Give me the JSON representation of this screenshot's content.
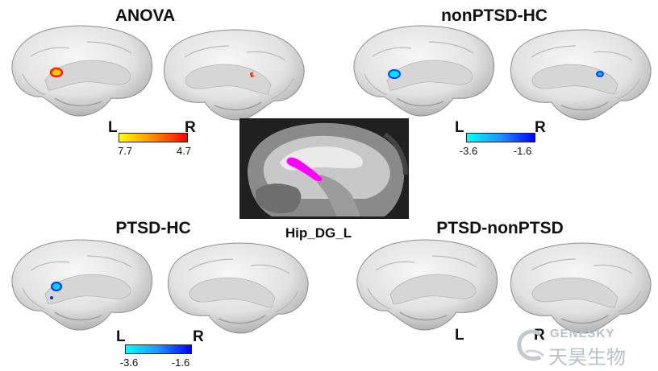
{
  "panels": {
    "anova": {
      "title": "ANOVA",
      "left_label": "L",
      "right_label": "R",
      "colorbar": {
        "min_label": "7.7",
        "max_label": "4.7",
        "gradient": [
          "#ffff00",
          "#ff8800",
          "#ff0000"
        ]
      }
    },
    "nonptsd_hc": {
      "title": "nonPTSD-HC",
      "left_label": "L",
      "right_label": "R",
      "colorbar": {
        "min_label": "-3.6",
        "max_label": "-1.6",
        "gradient": [
          "#00ffff",
          "#2090ff",
          "#0000ff"
        ]
      }
    },
    "ptsd_hc": {
      "title": "PTSD-HC",
      "left_label": "L",
      "right_label": "R",
      "colorbar": {
        "min_label": "-3.6",
        "max_label": "-1.6",
        "gradient": [
          "#00ffff",
          "#2090ff",
          "#0000ff"
        ]
      }
    },
    "ptsd_nonptsd": {
      "title": "PTSD-nonPTSD",
      "left_label": "L",
      "right_label": "R"
    }
  },
  "center": {
    "roi_label": "Hip_DG_L",
    "roi_color": "#ff00ff"
  },
  "watermark": {
    "brand_en": "GENESKY",
    "brand_cn": "天昊生物"
  },
  "colors": {
    "brain_fill": "#e6e6e6",
    "brain_shadow": "#9a9a9a"
  }
}
